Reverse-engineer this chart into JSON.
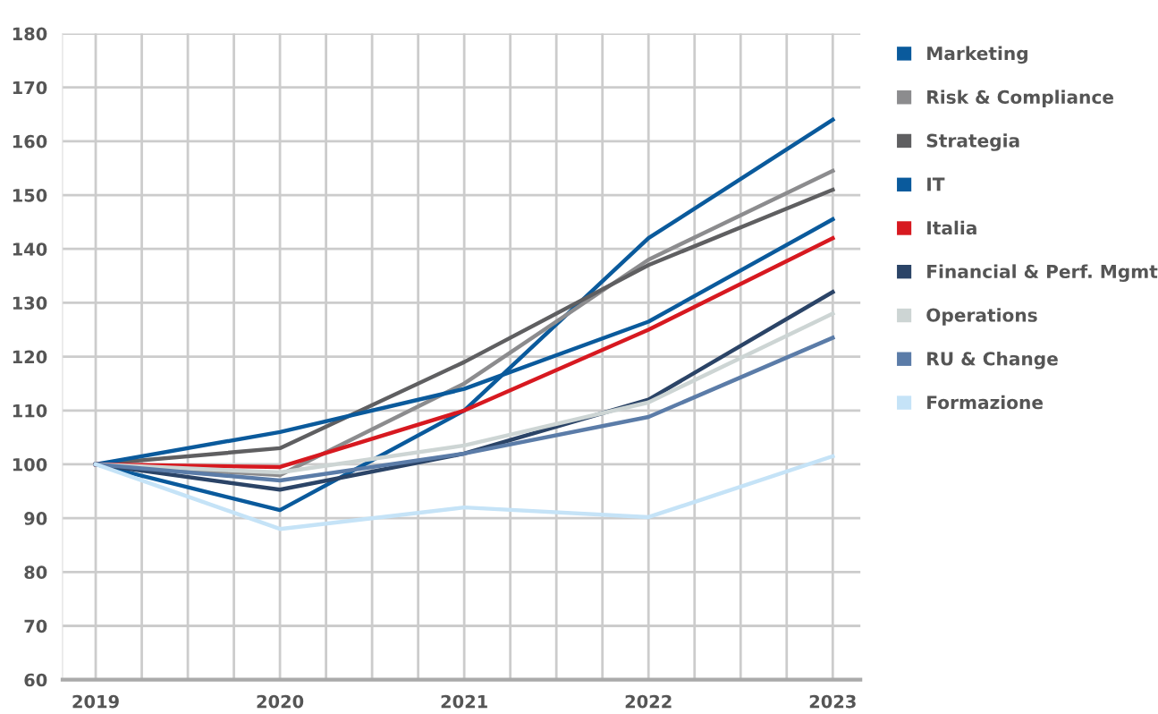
{
  "chart_data": {
    "type": "line",
    "x": [
      2019,
      2020,
      2021,
      2022,
      2023
    ],
    "series": [
      {
        "name": "Marketing",
        "color": "#0a5a9c",
        "values": [
          100,
          91.5,
          110,
          142,
          164
        ]
      },
      {
        "name": "Risk & Compliance",
        "color": "#8c8c8e",
        "values": [
          100,
          98,
          115,
          138,
          154.5
        ]
      },
      {
        "name": "Strategia",
        "color": "#5f5f61",
        "values": [
          100,
          103,
          119,
          137,
          151
        ]
      },
      {
        "name": "IT",
        "color": "#0a5a9c",
        "values": [
          100,
          106,
          114,
          126.5,
          145.5
        ]
      },
      {
        "name": "Italia",
        "color": "#d71920",
        "values": [
          100,
          99.5,
          110,
          125,
          142
        ]
      },
      {
        "name": "Financial & Perf. Mgmt",
        "color": "#2b4467",
        "values": [
          100,
          95.3,
          102,
          112,
          132
        ]
      },
      {
        "name": "Operations",
        "color": "#cdd5d4",
        "values": [
          100,
          98.5,
          103.5,
          111.5,
          128
        ]
      },
      {
        "name": "RU & Change",
        "color": "#5b7ca8",
        "values": [
          100,
          97,
          102,
          108.8,
          123.5
        ]
      },
      {
        "name": "Formazione",
        "color": "#c5e3f7",
        "values": [
          100,
          88,
          92,
          90.2,
          101.5
        ]
      }
    ],
    "xlim": [
      2018.82,
      2023.15
    ],
    "xticks": [
      2019,
      {
        "value": 2019.25,
        "label": null
      },
      {
        "value": 2019.5,
        "label": null
      },
      {
        "value": 2019.75,
        "label": null
      },
      2020,
      {
        "value": 2020.25,
        "label": null
      },
      {
        "value": 2020.5,
        "label": null
      },
      {
        "value": 2020.75,
        "label": null
      },
      2021,
      {
        "value": 2021.25,
        "label": null
      },
      {
        "value": 2021.5,
        "label": null
      },
      {
        "value": 2021.75,
        "label": null
      },
      2022,
      {
        "value": 2022.25,
        "label": null
      },
      {
        "value": 2022.5,
        "label": null
      },
      {
        "value": 2022.75,
        "label": null
      },
      2023
    ],
    "ylim": [
      60,
      180
    ],
    "yticks": [
      60,
      70,
      80,
      90,
      100,
      110,
      120,
      130,
      140,
      150,
      160,
      170,
      180
    ],
    "grid": true,
    "legend": "top right",
    "marker": "none",
    "line_style": "solid"
  }
}
